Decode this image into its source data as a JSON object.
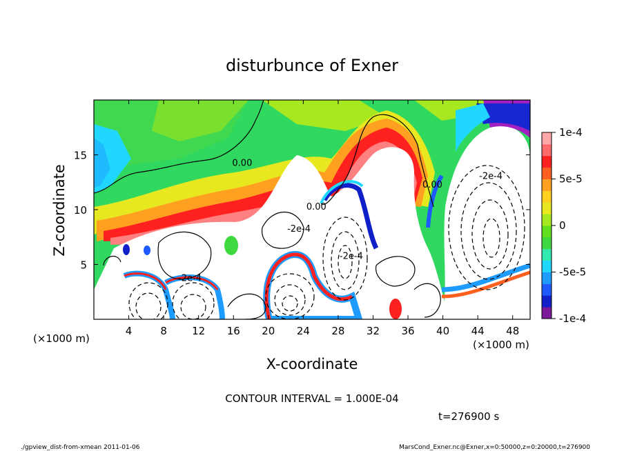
{
  "chart_data": {
    "type": "heatmap",
    "title": "disturbunce of Exner",
    "xlabel": "X-coordinate",
    "ylabel": "Z-coordinate",
    "x_unit": "(×1000 m)",
    "y_unit": "(×1000 m)",
    "xlim": [
      0,
      50
    ],
    "ylim": [
      0,
      20
    ],
    "x_ticks": [
      "4",
      "8",
      "12",
      "16",
      "20",
      "24",
      "28",
      "32",
      "36",
      "40",
      "44",
      "48"
    ],
    "x_tick_values": [
      4,
      8,
      12,
      16,
      20,
      24,
      28,
      32,
      36,
      40,
      44,
      48
    ],
    "y_ticks": [
      "5",
      "10",
      "15"
    ],
    "y_tick_values": [
      5,
      10,
      15
    ],
    "colorbar": {
      "ticks": [
        "1e-4",
        "5e-5",
        "0",
        "-5e-5",
        "-1e-4"
      ],
      "tick_values": [
        0.0001,
        5e-05,
        0,
        -5e-05,
        -0.0001
      ],
      "range": [
        -0.0001,
        0.0001
      ],
      "colors": [
        "#7a1a9a",
        "#1020c8",
        "#1e5aff",
        "#1e9bff",
        "#20d8ff",
        "#30e8b0",
        "#40d840",
        "#60e020",
        "#a8e820",
        "#e8e820",
        "#ffd020",
        "#ffa020",
        "#ff6020",
        "#ff2020",
        "#ff6a6a",
        "#ffa8a8"
      ]
    },
    "contour_labels": [
      {
        "text": "0.00",
        "x": 17,
        "z": 14
      },
      {
        "text": "0.00",
        "x": 25.5,
        "z": 10
      },
      {
        "text": "0.00",
        "x": 38.8,
        "z": 12
      },
      {
        "text": "-2e-4",
        "x": 45.5,
        "z": 12.8
      },
      {
        "text": "-2e-4",
        "x": 23.5,
        "z": 8
      },
      {
        "text": "-2e-4",
        "x": 29.5,
        "z": 5.5
      },
      {
        "text": "-2e-4",
        "x": 11,
        "z": 3.5
      }
    ],
    "contour_interval_text": "CONTOUR INTERVAL = 1.000E-04",
    "time_text": "t=276900  s"
  },
  "footer": {
    "left": "./gpview_dist-from-xmean  2011-01-06",
    "right": "MarsCond_Exner.nc@Exner,x=0:50000,z=0:20000,t=276900"
  }
}
